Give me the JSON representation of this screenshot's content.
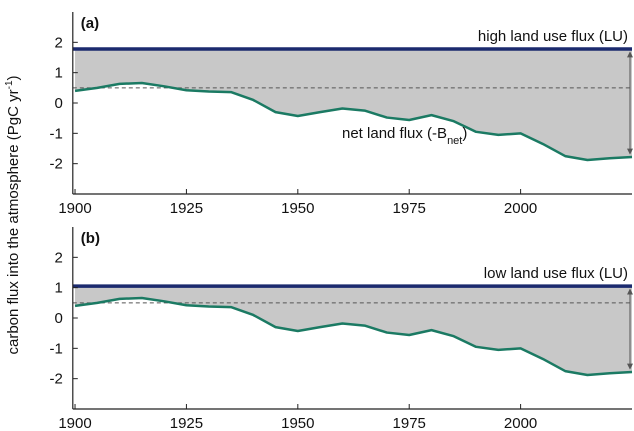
{
  "chart_data": [
    {
      "type": "line",
      "panel_label": "(a)",
      "ylabel_parts": [
        "carbon flux into the atmosphere (PgC yr",
        "-1",
        ")"
      ],
      "x": [
        1900,
        1905,
        1910,
        1915,
        1920,
        1925,
        1930,
        1935,
        1940,
        1945,
        1950,
        1955,
        1960,
        1965,
        1970,
        1975,
        1980,
        1985,
        1990,
        1995,
        2000,
        2005,
        2010,
        2015,
        2020,
        2025
      ],
      "series": [
        {
          "color": "#1b7a63",
          "values": [
            0.4,
            0.5,
            0.63,
            0.66,
            0.55,
            0.42,
            0.38,
            0.36,
            0.1,
            -0.3,
            -0.43,
            -0.3,
            -0.18,
            -0.25,
            -0.48,
            -0.56,
            -0.4,
            -0.6,
            -0.95,
            -1.05,
            -1.0,
            -1.35,
            -1.75,
            -1.88,
            -1.82,
            -1.78
          ]
        }
      ],
      "lu_level": {
        "label": "high land use flux (LU)",
        "value": 1.78,
        "color": "#1b2a6e"
      },
      "reference_line": 0.5,
      "annotation_parts": [
        "net land flux (-B",
        "net",
        ")"
      ],
      "fill_color": "#c8c8c8",
      "xlim": [
        1899.5,
        2025
      ],
      "ylim": [
        -3,
        3
      ],
      "xticks": [
        1900,
        1925,
        1950,
        1975,
        2000
      ],
      "yticks": [
        -2,
        -1,
        0,
        1,
        2
      ]
    },
    {
      "type": "line",
      "panel_label": "(b)",
      "x": [
        1900,
        1905,
        1910,
        1915,
        1920,
        1925,
        1930,
        1935,
        1940,
        1945,
        1950,
        1955,
        1960,
        1965,
        1970,
        1975,
        1980,
        1985,
        1990,
        1995,
        2000,
        2005,
        2010,
        2015,
        2020,
        2025
      ],
      "series": [
        {
          "color": "#1b7a63",
          "values": [
            0.4,
            0.5,
            0.63,
            0.66,
            0.55,
            0.42,
            0.38,
            0.36,
            0.1,
            -0.3,
            -0.43,
            -0.3,
            -0.18,
            -0.25,
            -0.48,
            -0.56,
            -0.4,
            -0.6,
            -0.95,
            -1.05,
            -1.0,
            -1.35,
            -1.75,
            -1.88,
            -1.82,
            -1.78
          ]
        }
      ],
      "lu_level": {
        "label": "low land use flux (LU)",
        "value": 1.05,
        "color": "#1b2a6e"
      },
      "reference_line": 0.5,
      "fill_color": "#c8c8c8",
      "xlim": [
        1899.5,
        2025
      ],
      "ylim": [
        -3,
        3
      ],
      "xticks": [
        1900,
        1925,
        1950,
        1975,
        2000
      ],
      "yticks": [
        -2,
        -1,
        0,
        1,
        2
      ]
    }
  ]
}
